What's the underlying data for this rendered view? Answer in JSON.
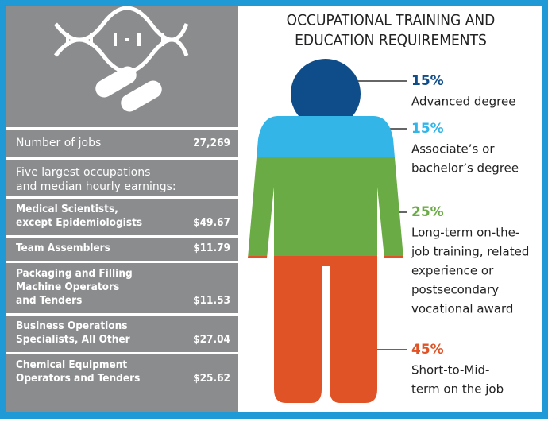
{
  "panel": {
    "jobs": {
      "label": "Number of jobs",
      "value": "27,269"
    },
    "occupations_heading": [
      "Five largest occupations",
      "and median hourly earnings:"
    ],
    "occupations": [
      {
        "name": [
          "Medical Scientists,",
          "except Epidemiologists"
        ],
        "wage": "$49.67"
      },
      {
        "name": [
          "Team Assemblers"
        ],
        "wage": "$11.79"
      },
      {
        "name": [
          "Packaging and Filling",
          "Machine Operators",
          "and Tenders"
        ],
        "wage": "$11.53"
      },
      {
        "name": [
          "Business Operations",
          "Specialists, All Other"
        ],
        "wage": "$27.04"
      },
      {
        "name": [
          "Chemical Equipment",
          "Operators and Tenders"
        ],
        "wage": "$25.62"
      }
    ]
  },
  "requirements": {
    "title": [
      "OCCUPATIONAL TRAINING AND",
      "EDUCATION REQUIREMENTS"
    ],
    "levels": [
      {
        "percent": "15%",
        "text": [
          "Advanced degree"
        ]
      },
      {
        "percent": "15%",
        "text": [
          "Associate’s or",
          "bachelor’s degree"
        ]
      },
      {
        "percent": "25%",
        "text": [
          "Long-term on-the-",
          "job training, related",
          "experience or",
          "postsecondary",
          "vocational award"
        ]
      },
      {
        "percent": "45%",
        "text": [
          "Short-to-Mid-",
          "term on the job"
        ]
      }
    ]
  }
}
